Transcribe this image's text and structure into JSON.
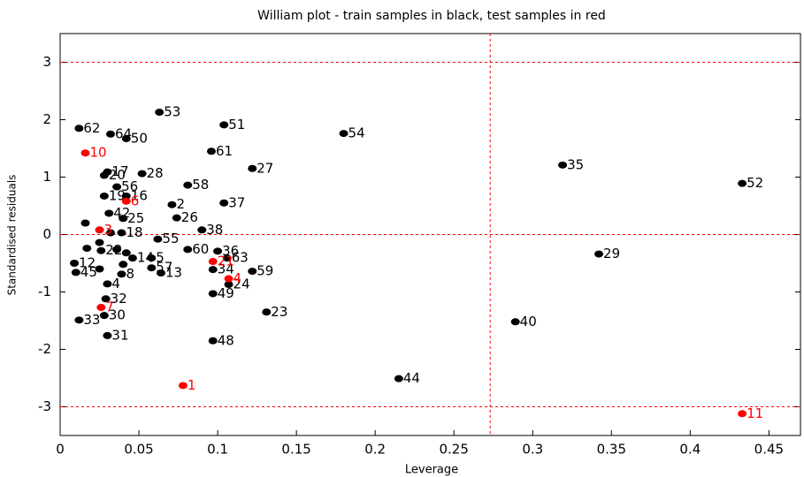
{
  "chart_data": {
    "type": "scatter",
    "title": "William plot - train samples in black, test samples in red",
    "xlabel": "Leverage",
    "ylabel": "Standardised residuals",
    "xlim": [
      0,
      0.47
    ],
    "ylim": [
      -3.5,
      3.5
    ],
    "xticks": [
      0,
      0.05,
      0.1,
      0.15,
      0.2,
      0.25,
      0.3,
      0.35,
      0.4,
      0.45
    ],
    "yticks": [
      -3,
      -2,
      -1,
      0,
      1,
      2,
      3
    ],
    "hlines": [
      3,
      -3,
      0
    ],
    "vlines": [
      0.273
    ],
    "line_color": "#ff0000",
    "series": [
      {
        "color": "#000000",
        "x": [
          0.063,
          0.104,
          0.012,
          0.032,
          0.042,
          0.18,
          0.096,
          0.122,
          0.319,
          0.052,
          0.03,
          0.028,
          0.433,
          0.081,
          0.036,
          0.042,
          0.028,
          0.104,
          0.071,
          0.031,
          0.074,
          0.04,
          0.09,
          0.039,
          0.062,
          0.026,
          0.081,
          0.1,
          0.106,
          0.342,
          0.058,
          0.046,
          0.009,
          0.058,
          0.064,
          0.097,
          0.122,
          0.107,
          0.097,
          0.01,
          0.039,
          0.03,
          0.029,
          0.131,
          0.289,
          0.028,
          0.012,
          0.03,
          0.097,
          0.215,
          0.016,
          0.017,
          0.025,
          0.032,
          0.036,
          0.042,
          0.025,
          0.04
        ],
        "values": [
          2.13,
          1.91,
          1.85,
          1.75,
          1.67,
          1.76,
          1.45,
          1.15,
          1.21,
          1.06,
          1.09,
          1.03,
          0.89,
          0.86,
          0.83,
          0.67,
          0.67,
          0.55,
          0.52,
          0.37,
          0.29,
          0.28,
          0.08,
          0.03,
          -0.08,
          -0.28,
          -0.26,
          -0.29,
          -0.41,
          -0.34,
          -0.41,
          -0.41,
          -0.5,
          -0.58,
          -0.67,
          -0.61,
          -0.64,
          -0.87,
          -1.03,
          -0.66,
          -0.69,
          -0.86,
          -1.12,
          -1.35,
          -1.52,
          -1.41,
          -1.49,
          -1.76,
          -1.85,
          -2.51,
          0.2,
          -0.24,
          -0.14,
          0.03,
          -0.26,
          -0.32,
          -0.6,
          -0.52
        ],
        "labels": [
          "53",
          "51",
          "62",
          "64",
          "50",
          "54",
          "61",
          "27",
          "35",
          "28",
          "17",
          "20",
          "52",
          "58",
          "56",
          "16",
          "19",
          "37",
          "2",
          "42",
          "26",
          "25",
          "38",
          "18",
          "55",
          "22",
          "60",
          "36",
          "63",
          "29",
          "5",
          "14",
          "12",
          "57",
          "13",
          "34",
          "59",
          "24",
          "49",
          "45",
          "8",
          "4",
          "32",
          "23",
          "40",
          "30",
          "33",
          "31",
          "48",
          "44",
          null,
          null,
          null,
          null,
          null,
          null,
          null,
          null
        ]
      },
      {
        "color": "#ff0000",
        "x": [
          0.016,
          0.042,
          0.025,
          0.097,
          0.107,
          0.026,
          0.078,
          0.433
        ],
        "values": [
          1.42,
          0.58,
          0.08,
          -0.47,
          -0.77,
          -1.27,
          -2.63,
          -3.12
        ],
        "labels": [
          "10",
          "6",
          "3",
          "21",
          "4",
          "7",
          "1",
          "11"
        ]
      }
    ]
  }
}
